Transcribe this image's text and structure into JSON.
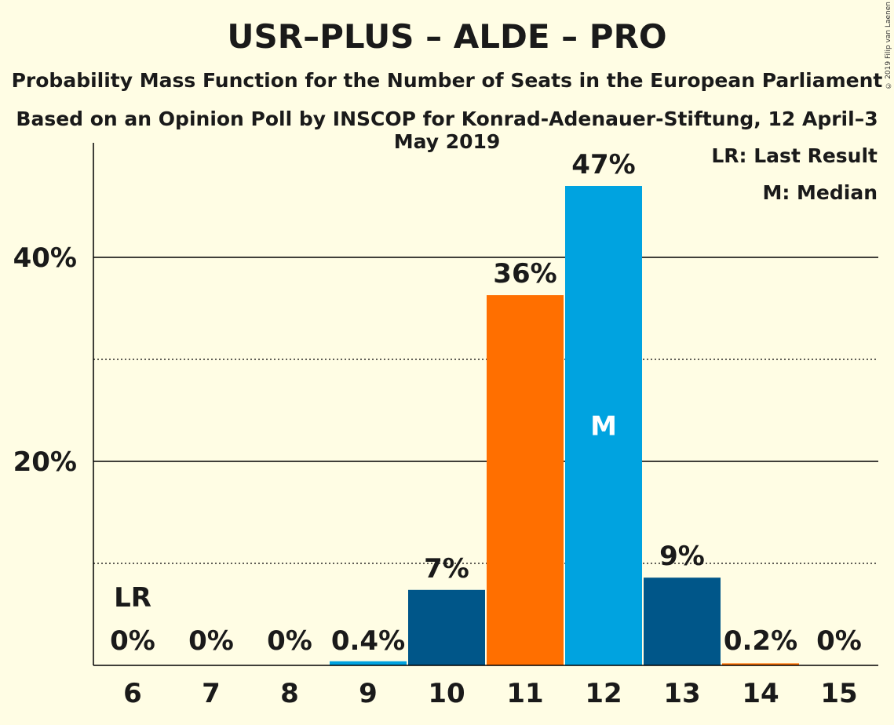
{
  "header": {
    "title": "USR–PLUS – ALDE – PRO",
    "subtitle": "Probability Mass Function for the Number of Seats in the European Parliament",
    "subtitle2": "Based on an Opinion Poll by INSCOP for Konrad-Adenauer-Stiftung, 12 April–3 May 2019",
    "copyright": "© 2019 Filip van Laenen"
  },
  "legend": {
    "lr": "LR: Last Result",
    "m": "M: Median"
  },
  "chart_data": {
    "type": "bar",
    "categories": [
      "6",
      "7",
      "8",
      "9",
      "10",
      "11",
      "12",
      "13",
      "14",
      "15"
    ],
    "values": [
      0,
      0,
      0,
      0.4,
      7.4,
      36.3,
      47.0,
      8.6,
      0.2,
      0
    ],
    "labels": [
      "0%",
      "0%",
      "0%",
      "0.4%",
      "7%",
      "36%",
      "47%",
      "9%",
      "0.2%",
      "0%"
    ],
    "colors": [
      "#005689",
      "#005689",
      "#005689",
      "#00A3E0",
      "#005689",
      "#FF6F00",
      "#00A3E0",
      "#005689",
      "#FF6F00",
      "#005689"
    ],
    "ylim": [
      0,
      50
    ],
    "yticks": [
      {
        "value": 10,
        "label": "",
        "style": "dotted"
      },
      {
        "value": 20,
        "label": "20%",
        "style": "solid"
      },
      {
        "value": 30,
        "label": "",
        "style": "dotted"
      },
      {
        "value": 40,
        "label": "40%",
        "style": "solid"
      }
    ],
    "last_result": {
      "category": "6",
      "label": "LR"
    },
    "median": {
      "category": "12",
      "label": "M"
    }
  }
}
